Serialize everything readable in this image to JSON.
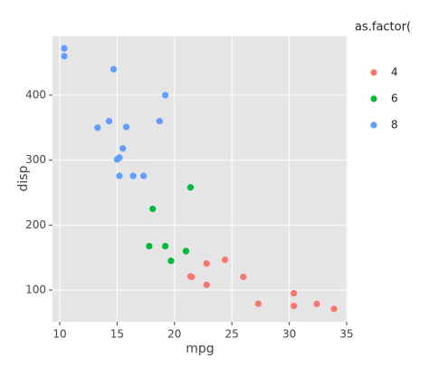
{
  "chart_data": {
    "type": "scatter",
    "x_label": "mpg",
    "y_label": "disp",
    "legend_title": "as.factor(",
    "xlim": [
      9.37,
      35.08
    ],
    "xticks": [
      10,
      15,
      20,
      25,
      30,
      35
    ],
    "ylim": [
      51.2,
      490.7
    ],
    "yticks": [
      100,
      200,
      300,
      400
    ],
    "grid": true,
    "series": [
      {
        "name": "4",
        "color": "#F8766D",
        "x": [
          22.8,
          24.4,
          22.8,
          32.4,
          30.4,
          33.9,
          21.5,
          27.3,
          26.0,
          30.4,
          21.4
        ],
        "values": [
          108,
          146.7,
          140.8,
          78.7,
          75.7,
          71.1,
          120.1,
          79,
          120.3,
          95.1,
          121
        ]
      },
      {
        "name": "6",
        "color": "#00BA38",
        "x": [
          21.0,
          21.0,
          21.4,
          18.1,
          19.2,
          17.8,
          19.7
        ],
        "values": [
          160,
          160,
          258,
          225,
          167.6,
          167.6,
          145
        ]
      },
      {
        "name": "8",
        "color": "#619CFF",
        "x": [
          18.7,
          14.3,
          16.4,
          17.3,
          15.2,
          10.4,
          10.4,
          14.7,
          15.5,
          15.2,
          13.3,
          19.2,
          15.8,
          15.0
        ],
        "values": [
          360,
          360,
          275.8,
          275.8,
          275.8,
          472,
          460,
          440,
          318,
          304,
          350,
          400,
          351,
          301
        ]
      }
    ]
  }
}
